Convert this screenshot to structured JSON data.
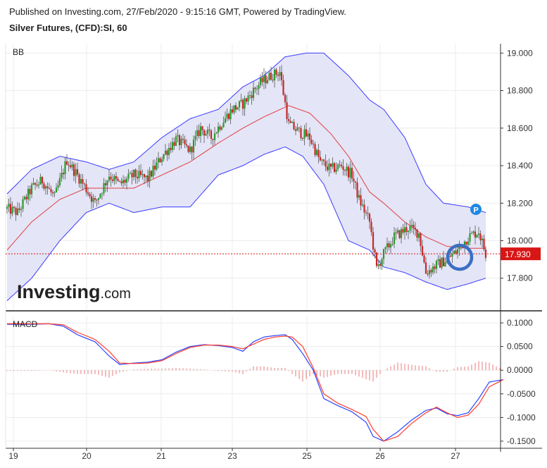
{
  "header": {
    "published": "Published on Investing.com, 27/Feb/2020 - 9:15:16 GMT, Powered by TradingView.",
    "instrument": "Silver Futures, (CFD):SI, 60"
  },
  "colors": {
    "up_candle": "#2a9a2a",
    "down_candle": "#c62828",
    "band": "#3b3bff",
    "band_fill": "#e4e5f6",
    "mid_line": "#e04040",
    "macd": "#2b45ff",
    "signal": "#ff3b30",
    "price_tag": "#d81616",
    "highlight_circle": "#3a6fc4",
    "p_marker": "#1e88e5"
  },
  "logo": {
    "main": "Investing",
    "suffix": ".com"
  },
  "current_price_label": "17.930",
  "p_marker_label": "P",
  "chart_data": [
    {
      "type": "candlestick",
      "panel_label": "BB",
      "indicator": "Bollinger Bands",
      "ylim": [
        17.63,
        19.05
      ],
      "y_ticks": [
        "19.000",
        "18.800",
        "18.600",
        "18.400",
        "18.200",
        "18.000",
        "17.800"
      ],
      "y_tick_values": [
        19.0,
        18.8,
        18.6,
        18.4,
        18.2,
        18.0,
        17.8
      ],
      "x_ticks": [
        "19",
        "20",
        "21",
        "23",
        "25",
        "26",
        "27"
      ],
      "current_price": 17.93,
      "anchors": [
        [
          0,
          18.17
        ],
        [
          6,
          18.15
        ],
        [
          14,
          18.28
        ],
        [
          20,
          18.32
        ],
        [
          27,
          18.23
        ],
        [
          34,
          18.43
        ],
        [
          42,
          18.32
        ],
        [
          50,
          18.2
        ],
        [
          58,
          18.35
        ],
        [
          64,
          18.3
        ],
        [
          72,
          18.35
        ],
        [
          80,
          18.33
        ],
        [
          88,
          18.45
        ],
        [
          96,
          18.54
        ],
        [
          104,
          18.48
        ],
        [
          110,
          18.6
        ],
        [
          116,
          18.55
        ],
        [
          122,
          18.63
        ],
        [
          128,
          18.7
        ],
        [
          134,
          18.73
        ],
        [
          140,
          18.8
        ],
        [
          145,
          18.85
        ],
        [
          150,
          18.88
        ],
        [
          155,
          18.9
        ],
        [
          160,
          18.62
        ],
        [
          166,
          18.58
        ],
        [
          172,
          18.55
        ],
        [
          178,
          18.42
        ],
        [
          184,
          18.38
        ],
        [
          190,
          18.4
        ],
        [
          196,
          18.35
        ],
        [
          200,
          18.22
        ],
        [
          206,
          18.1
        ],
        [
          210,
          17.85
        ],
        [
          214,
          17.93
        ],
        [
          220,
          18.02
        ],
        [
          228,
          18.07
        ],
        [
          234,
          18.04
        ],
        [
          238,
          17.83
        ],
        [
          244,
          17.87
        ],
        [
          250,
          17.9
        ],
        [
          256,
          17.95
        ],
        [
          262,
          18.02
        ],
        [
          268,
          18.05
        ],
        [
          272,
          17.93
        ]
      ],
      "bollinger": {
        "upper": [
          [
            0,
            18.25
          ],
          [
            14,
            18.38
          ],
          [
            30,
            18.45
          ],
          [
            45,
            18.42
          ],
          [
            58,
            18.38
          ],
          [
            72,
            18.42
          ],
          [
            88,
            18.55
          ],
          [
            104,
            18.65
          ],
          [
            120,
            18.7
          ],
          [
            134,
            18.82
          ],
          [
            146,
            18.88
          ],
          [
            158,
            18.98
          ],
          [
            170,
            19.0
          ],
          [
            180,
            19.0
          ],
          [
            194,
            18.88
          ],
          [
            206,
            18.75
          ],
          [
            214,
            18.7
          ],
          [
            226,
            18.55
          ],
          [
            238,
            18.3
          ],
          [
            248,
            18.2
          ],
          [
            262,
            18.18
          ],
          [
            272,
            18.15
          ]
        ],
        "middle": [
          [
            0,
            17.95
          ],
          [
            14,
            18.1
          ],
          [
            30,
            18.22
          ],
          [
            45,
            18.28
          ],
          [
            58,
            18.28
          ],
          [
            72,
            18.28
          ],
          [
            88,
            18.35
          ],
          [
            104,
            18.42
          ],
          [
            120,
            18.52
          ],
          [
            134,
            18.6
          ],
          [
            146,
            18.66
          ],
          [
            160,
            18.72
          ],
          [
            172,
            18.68
          ],
          [
            184,
            18.57
          ],
          [
            194,
            18.45
          ],
          [
            206,
            18.26
          ],
          [
            214,
            18.2
          ],
          [
            226,
            18.1
          ],
          [
            238,
            18.02
          ],
          [
            250,
            17.97
          ],
          [
            262,
            17.96
          ],
          [
            272,
            17.96
          ]
        ],
        "lower": [
          [
            0,
            17.68
          ],
          [
            14,
            17.8
          ],
          [
            30,
            18.0
          ],
          [
            45,
            18.15
          ],
          [
            58,
            18.2
          ],
          [
            72,
            18.15
          ],
          [
            88,
            18.18
          ],
          [
            104,
            18.18
          ],
          [
            120,
            18.35
          ],
          [
            134,
            18.4
          ],
          [
            146,
            18.46
          ],
          [
            158,
            18.5
          ],
          [
            168,
            18.45
          ],
          [
            180,
            18.3
          ],
          [
            194,
            18.0
          ],
          [
            206,
            17.95
          ],
          [
            214,
            17.86
          ],
          [
            226,
            17.83
          ],
          [
            238,
            17.78
          ],
          [
            250,
            17.74
          ],
          [
            262,
            17.77
          ],
          [
            272,
            17.8
          ]
        ]
      }
    },
    {
      "type": "line",
      "panel_label": "MACD",
      "ylim": [
        -0.165,
        0.115
      ],
      "y_ticks": [
        "0.1000",
        "0.0500",
        "0.0000",
        "-0.0500",
        "-0.1000",
        "-0.1500"
      ],
      "y_tick_values": [
        0.1,
        0.05,
        0.0,
        -0.05,
        -0.1,
        -0.15
      ],
      "series": [
        {
          "role": "macd",
          "points": [
            [
              0,
              0.097
            ],
            [
              14,
              0.097
            ],
            [
              24,
              0.098
            ],
            [
              32,
              0.093
            ],
            [
              40,
              0.075
            ],
            [
              50,
              0.06
            ],
            [
              58,
              0.03
            ],
            [
              64,
              0.012
            ],
            [
              72,
              0.015
            ],
            [
              80,
              0.017
            ],
            [
              88,
              0.022
            ],
            [
              96,
              0.038
            ],
            [
              104,
              0.05
            ],
            [
              112,
              0.054
            ],
            [
              120,
              0.052
            ],
            [
              128,
              0.048
            ],
            [
              134,
              0.04
            ],
            [
              140,
              0.06
            ],
            [
              146,
              0.07
            ],
            [
              152,
              0.073
            ],
            [
              158,
              0.075
            ],
            [
              162,
              0.065
            ],
            [
              168,
              0.035
            ],
            [
              174,
              0.0
            ],
            [
              180,
              -0.06
            ],
            [
              188,
              -0.075
            ],
            [
              196,
              -0.088
            ],
            [
              204,
              -0.11
            ],
            [
              208,
              -0.14
            ],
            [
              214,
              -0.15
            ],
            [
              222,
              -0.13
            ],
            [
              230,
              -0.105
            ],
            [
              238,
              -0.085
            ],
            [
              244,
              -0.08
            ],
            [
              250,
              -0.092
            ],
            [
              256,
              -0.096
            ],
            [
              262,
              -0.09
            ],
            [
              268,
              -0.06
            ],
            [
              274,
              -0.025
            ],
            [
              282,
              -0.02
            ]
          ]
        },
        {
          "role": "signal",
          "points": [
            [
              0,
              0.098
            ],
            [
              14,
              0.098
            ],
            [
              24,
              0.098
            ],
            [
              32,
              0.096
            ],
            [
              40,
              0.08
            ],
            [
              50,
              0.065
            ],
            [
              58,
              0.04
            ],
            [
              64,
              0.015
            ],
            [
              72,
              0.014
            ],
            [
              80,
              0.015
            ],
            [
              88,
              0.02
            ],
            [
              96,
              0.035
            ],
            [
              104,
              0.048
            ],
            [
              112,
              0.053
            ],
            [
              120,
              0.053
            ],
            [
              128,
              0.05
            ],
            [
              134,
              0.045
            ],
            [
              140,
              0.055
            ],
            [
              146,
              0.065
            ],
            [
              152,
              0.07
            ],
            [
              158,
              0.072
            ],
            [
              162,
              0.07
            ],
            [
              168,
              0.05
            ],
            [
              174,
              0.005
            ],
            [
              180,
              -0.05
            ],
            [
              188,
              -0.07
            ],
            [
              196,
              -0.083
            ],
            [
              204,
              -0.098
            ],
            [
              208,
              -0.125
            ],
            [
              214,
              -0.15
            ],
            [
              222,
              -0.14
            ],
            [
              230,
              -0.112
            ],
            [
              238,
              -0.09
            ],
            [
              244,
              -0.078
            ],
            [
              250,
              -0.09
            ],
            [
              256,
              -0.1
            ],
            [
              262,
              -0.095
            ],
            [
              268,
              -0.072
            ],
            [
              274,
              -0.035
            ],
            [
              282,
              -0.02
            ]
          ]
        }
      ]
    }
  ]
}
